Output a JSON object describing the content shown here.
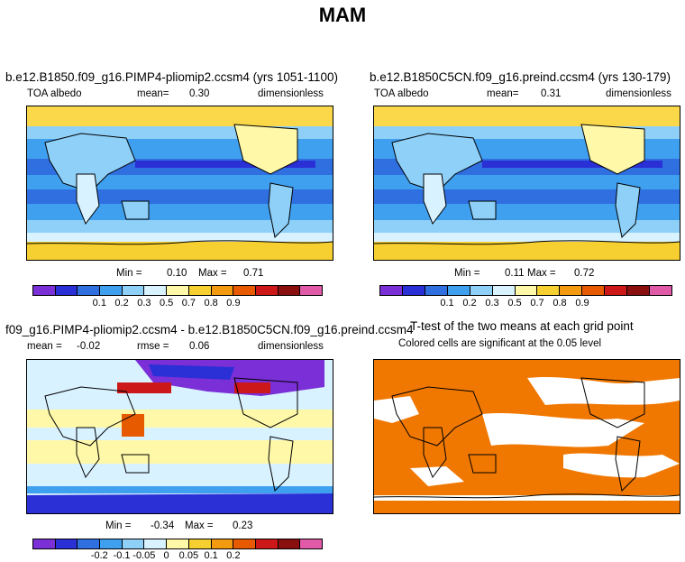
{
  "page_title": "MAM",
  "panels": [
    {
      "title": "b.e12.B1850.f09_g16.PIMP4-pliomip2.ccsm4 (yrs 1051-1100)",
      "variable": "TOA albedo",
      "mean_label": "mean=",
      "mean_value": "0.30",
      "units": "dimensionless",
      "min_label": "Min =",
      "min_value": "0.10",
      "max_label": "Max =",
      "max_value": "0.71"
    },
    {
      "title": "b.e12.B1850C5CN.f09_g16.preind.ccsm4 (yrs 130-179)",
      "variable": "TOA albedo",
      "mean_label": "mean=",
      "mean_value": "0.31",
      "units": "dimensionless",
      "min_label": "Min =",
      "min_value": "0.11",
      "max_label": "Max =",
      "max_value": "0.72"
    },
    {
      "title": "f09_g16.PIMP4-pliomip2.ccsm4 - b.e12.B1850C5CN.f09_g16.preind.ccsm4",
      "mean_label": "mean =",
      "mean_value": "-0.02",
      "rmse_label": "rmse =",
      "rmse_value": "0.06",
      "units": "dimensionless",
      "min_label": "Min =",
      "min_value": "-0.34",
      "max_label": "Max =",
      "max_value": "0.23"
    },
    {
      "title": "T-test of the two means at each grid point",
      "subtitle": "Colored cells are significant at the 0.05 level"
    }
  ],
  "colorbars": {
    "albedo_ticks": [
      "0.1",
      "0.2",
      "0.3",
      "0.5",
      "0.7",
      "0.8",
      "0.9"
    ],
    "diff_ticks": [
      "-0.2",
      "-0.1",
      "-0.05",
      "0",
      "0.05",
      "0.1",
      "0.2"
    ],
    "albedo_colors": [
      "#7b2fd6",
      "#2a2fd6",
      "#2f6fe0",
      "#3fa0f0",
      "#8fd0f8",
      "#d8f2ff",
      "#fff8a8",
      "#f6d030",
      "#f49a10",
      "#e85a00",
      "#cc1818",
      "#8a1010",
      "#e05aa8"
    ],
    "diff_colors": [
      "#7b2fd6",
      "#2a2fd6",
      "#2f6fe0",
      "#3fa0f0",
      "#8fd0f8",
      "#d8f2ff",
      "#fff8a8",
      "#f6d030",
      "#f49a10",
      "#e85a00",
      "#cc1818",
      "#8a1010",
      "#e05aa8"
    ]
  },
  "chart_data": [
    {
      "type": "heatmap",
      "title": "b.e12.B1850.f09_g16.PIMP4-pliomip2.ccsm4 (yrs 1051-1100)",
      "variable": "TOA albedo",
      "mean": 0.3,
      "min": 0.1,
      "max": 0.71,
      "colorbar_levels": [
        0.1,
        0.2,
        0.3,
        0.5,
        0.7,
        0.8,
        0.9
      ]
    },
    {
      "type": "heatmap",
      "title": "b.e12.B1850C5CN.f09_g16.preind.ccsm4 (yrs 130-179)",
      "variable": "TOA albedo",
      "mean": 0.31,
      "min": 0.11,
      "max": 0.72,
      "colorbar_levels": [
        0.1,
        0.2,
        0.3,
        0.5,
        0.7,
        0.8,
        0.9
      ]
    },
    {
      "type": "heatmap",
      "title": "f09_g16.PIMP4-pliomip2.ccsm4 - b.e12.B1850C5CN.f09_g16.preind.ccsm4",
      "mean": -0.02,
      "rmse": 0.06,
      "min": -0.34,
      "max": 0.23,
      "colorbar_levels": [
        -0.2,
        -0.1,
        -0.05,
        0,
        0.05,
        0.1,
        0.2
      ]
    },
    {
      "type": "heatmap",
      "title": "T-test of the two means at each grid point",
      "subtitle": "Colored cells are significant at the 0.05 level",
      "significance_level": 0.05
    }
  ]
}
